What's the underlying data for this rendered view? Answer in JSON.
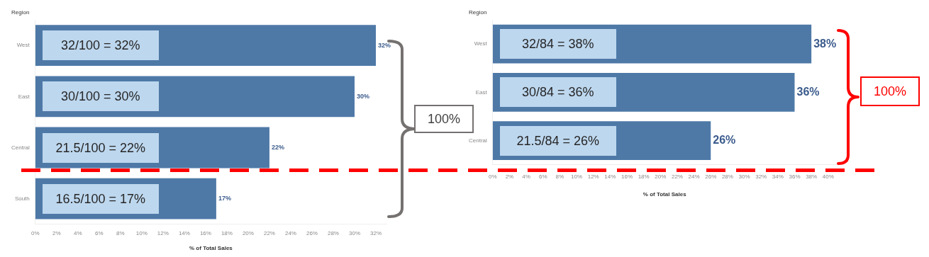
{
  "chart_data": [
    {
      "type": "bar",
      "orientation": "horizontal",
      "ylabel": "Region",
      "xlabel": "% of Total Sales",
      "categories": [
        "West",
        "East",
        "Central",
        "South"
      ],
      "values": [
        32,
        30,
        22,
        17
      ],
      "value_labels": [
        "32%",
        "30%",
        "22%",
        "17%"
      ],
      "color": "#4e79a7",
      "xlim": [
        0,
        33
      ],
      "xticks": [
        {
          "value": 0,
          "label": "0%"
        },
        {
          "value": 2,
          "label": "2%"
        },
        {
          "value": 4,
          "label": "4%"
        },
        {
          "value": 6,
          "label": "6%"
        },
        {
          "value": 8,
          "label": "8%"
        },
        {
          "value": 10,
          "label": "10%"
        },
        {
          "value": 12,
          "label": "12%"
        },
        {
          "value": 14,
          "label": "14%"
        },
        {
          "value": 16,
          "label": "16%"
        },
        {
          "value": 18,
          "label": "18%"
        },
        {
          "value": 20,
          "label": "20%"
        },
        {
          "value": 22,
          "label": "22%"
        },
        {
          "value": 24,
          "label": "24%"
        },
        {
          "value": 26,
          "label": "26%"
        },
        {
          "value": 28,
          "label": "28%"
        },
        {
          "value": 30,
          "label": "30%"
        },
        {
          "value": 32,
          "label": "32%"
        }
      ],
      "annotations": [
        "32/100 = 32%",
        "30/100 = 30%",
        "21.5/100 = 22%",
        "16.5/100 = 17%",
        "100%"
      ]
    },
    {
      "type": "bar",
      "orientation": "horizontal",
      "ylabel": "Region",
      "xlabel": "% of Total Sales",
      "categories": [
        "West",
        "East",
        "Central"
      ],
      "values": [
        38,
        36,
        26
      ],
      "value_labels": [
        "38%",
        "36%",
        "26%"
      ],
      "color": "#4e79a7",
      "xlim": [
        0,
        41
      ],
      "xticks": [
        {
          "value": 0,
          "label": "0%"
        },
        {
          "value": 2,
          "label": "2%"
        },
        {
          "value": 4,
          "label": "4%"
        },
        {
          "value": 6,
          "label": "6%"
        },
        {
          "value": 8,
          "label": "8%"
        },
        {
          "value": 10,
          "label": "10%"
        },
        {
          "value": 12,
          "label": "12%"
        },
        {
          "value": 14,
          "label": "14%"
        },
        {
          "value": 16,
          "label": "16%"
        },
        {
          "value": 18,
          "label": "18%"
        },
        {
          "value": 20,
          "label": "20%"
        },
        {
          "value": 22,
          "label": "22%"
        },
        {
          "value": 24,
          "label": "24%"
        },
        {
          "value": 26,
          "label": "26%"
        },
        {
          "value": 28,
          "label": "28%"
        },
        {
          "value": 30,
          "label": "30%"
        },
        {
          "value": 32,
          "label": "32%"
        },
        {
          "value": 34,
          "label": "34%"
        },
        {
          "value": 36,
          "label": "36%"
        },
        {
          "value": 38,
          "label": "38%"
        },
        {
          "value": 40,
          "label": "40%"
        }
      ],
      "annotations": [
        "32/84 = 38%",
        "30/84 = 36%",
        "21.5/84 = 26%",
        "100%"
      ]
    }
  ]
}
